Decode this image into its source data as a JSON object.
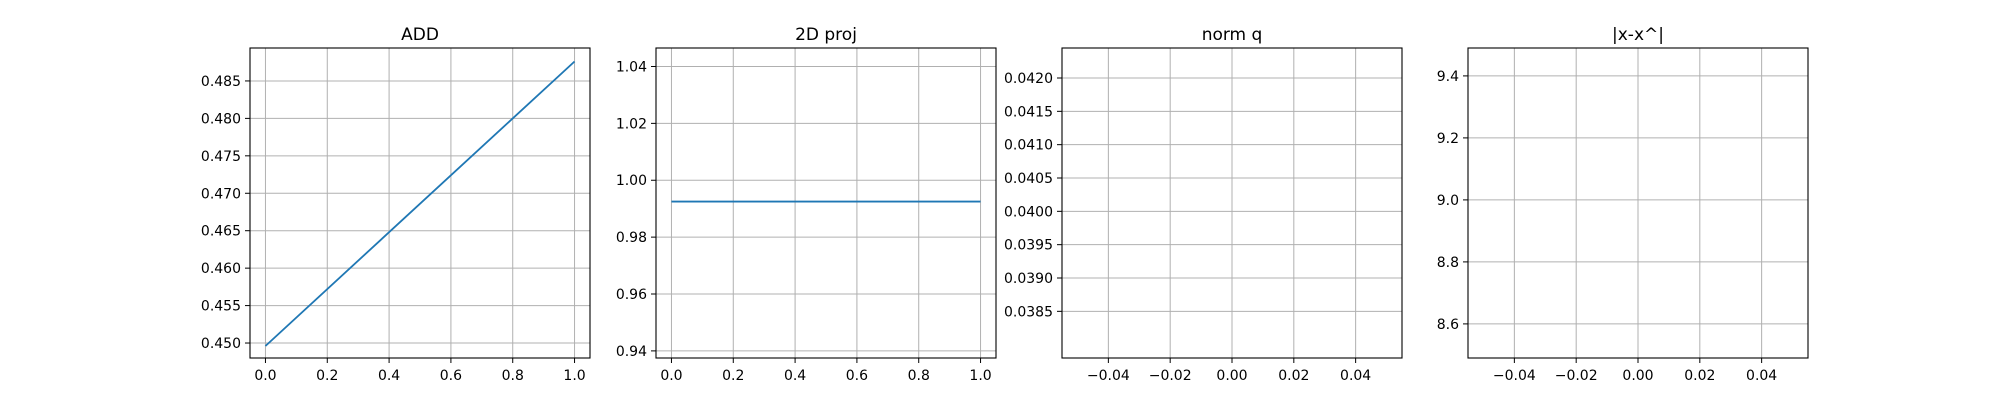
{
  "chart_data": [
    {
      "type": "line",
      "title": "ADD",
      "xlabel": "",
      "ylabel": "",
      "grid": true,
      "xlim": [
        -0.05,
        1.05
      ],
      "ylim": [
        0.448,
        0.4894
      ],
      "xticks": [
        0.0,
        0.2,
        0.4,
        0.6,
        0.8,
        1.0
      ],
      "xtick_labels": [
        "0.0",
        "0.2",
        "0.4",
        "0.6",
        "0.8",
        "1.0"
      ],
      "yticks": [
        0.45,
        0.455,
        0.46,
        0.465,
        0.47,
        0.475,
        0.48,
        0.485
      ],
      "ytick_labels": [
        "0.450",
        "0.455",
        "0.460",
        "0.465",
        "0.470",
        "0.475",
        "0.480",
        "0.485"
      ],
      "series": [
        {
          "x": [
            0.0,
            1.0
          ],
          "y": [
            0.4496,
            0.4876
          ],
          "color": "#1f77b4"
        }
      ]
    },
    {
      "type": "line",
      "title": "2D proj",
      "xlabel": "",
      "ylabel": "",
      "grid": true,
      "xlim": [
        -0.05,
        1.05
      ],
      "ylim": [
        0.9375,
        1.0465
      ],
      "xticks": [
        0.0,
        0.2,
        0.4,
        0.6,
        0.8,
        1.0
      ],
      "xtick_labels": [
        "0.0",
        "0.2",
        "0.4",
        "0.6",
        "0.8",
        "1.0"
      ],
      "yticks": [
        0.94,
        0.96,
        0.98,
        1.0,
        1.02,
        1.04
      ],
      "ytick_labels": [
        "0.94",
        "0.96",
        "0.98",
        "1.00",
        "1.02",
        "1.04"
      ],
      "series": [
        {
          "x": [
            0.0,
            1.0
          ],
          "y": [
            0.9925,
            0.9925
          ],
          "color": "#1f77b4"
        }
      ]
    },
    {
      "type": "line",
      "title": "norm q",
      "xlabel": "",
      "ylabel": "",
      "grid": true,
      "xlim": [
        -0.055,
        0.055
      ],
      "ylim": [
        0.0378,
        0.04245
      ],
      "xticks": [
        -0.04,
        -0.02,
        0.0,
        0.02,
        0.04
      ],
      "xtick_labels": [
        "−0.04",
        "−0.02",
        "0.00",
        "0.02",
        "0.04"
      ],
      "yticks": [
        0.0385,
        0.039,
        0.0395,
        0.04,
        0.0405,
        0.041,
        0.0415,
        0.042
      ],
      "ytick_labels": [
        "0.0385",
        "0.0390",
        "0.0395",
        "0.0400",
        "0.0405",
        "0.0410",
        "0.0415",
        "0.0420"
      ],
      "series": []
    },
    {
      "type": "line",
      "title": "|x-x^|",
      "xlabel": "",
      "ylabel": "",
      "grid": true,
      "xlim": [
        -0.055,
        0.055
      ],
      "ylim": [
        8.49,
        9.49
      ],
      "xticks": [
        -0.04,
        -0.02,
        0.0,
        0.02,
        0.04
      ],
      "xtick_labels": [
        "−0.04",
        "−0.02",
        "0.00",
        "0.02",
        "0.04"
      ],
      "yticks": [
        8.6,
        8.8,
        9.0,
        9.2,
        9.4
      ],
      "ytick_labels": [
        "8.6",
        "8.8",
        "9.0",
        "9.2",
        "9.4"
      ],
      "series": []
    }
  ]
}
